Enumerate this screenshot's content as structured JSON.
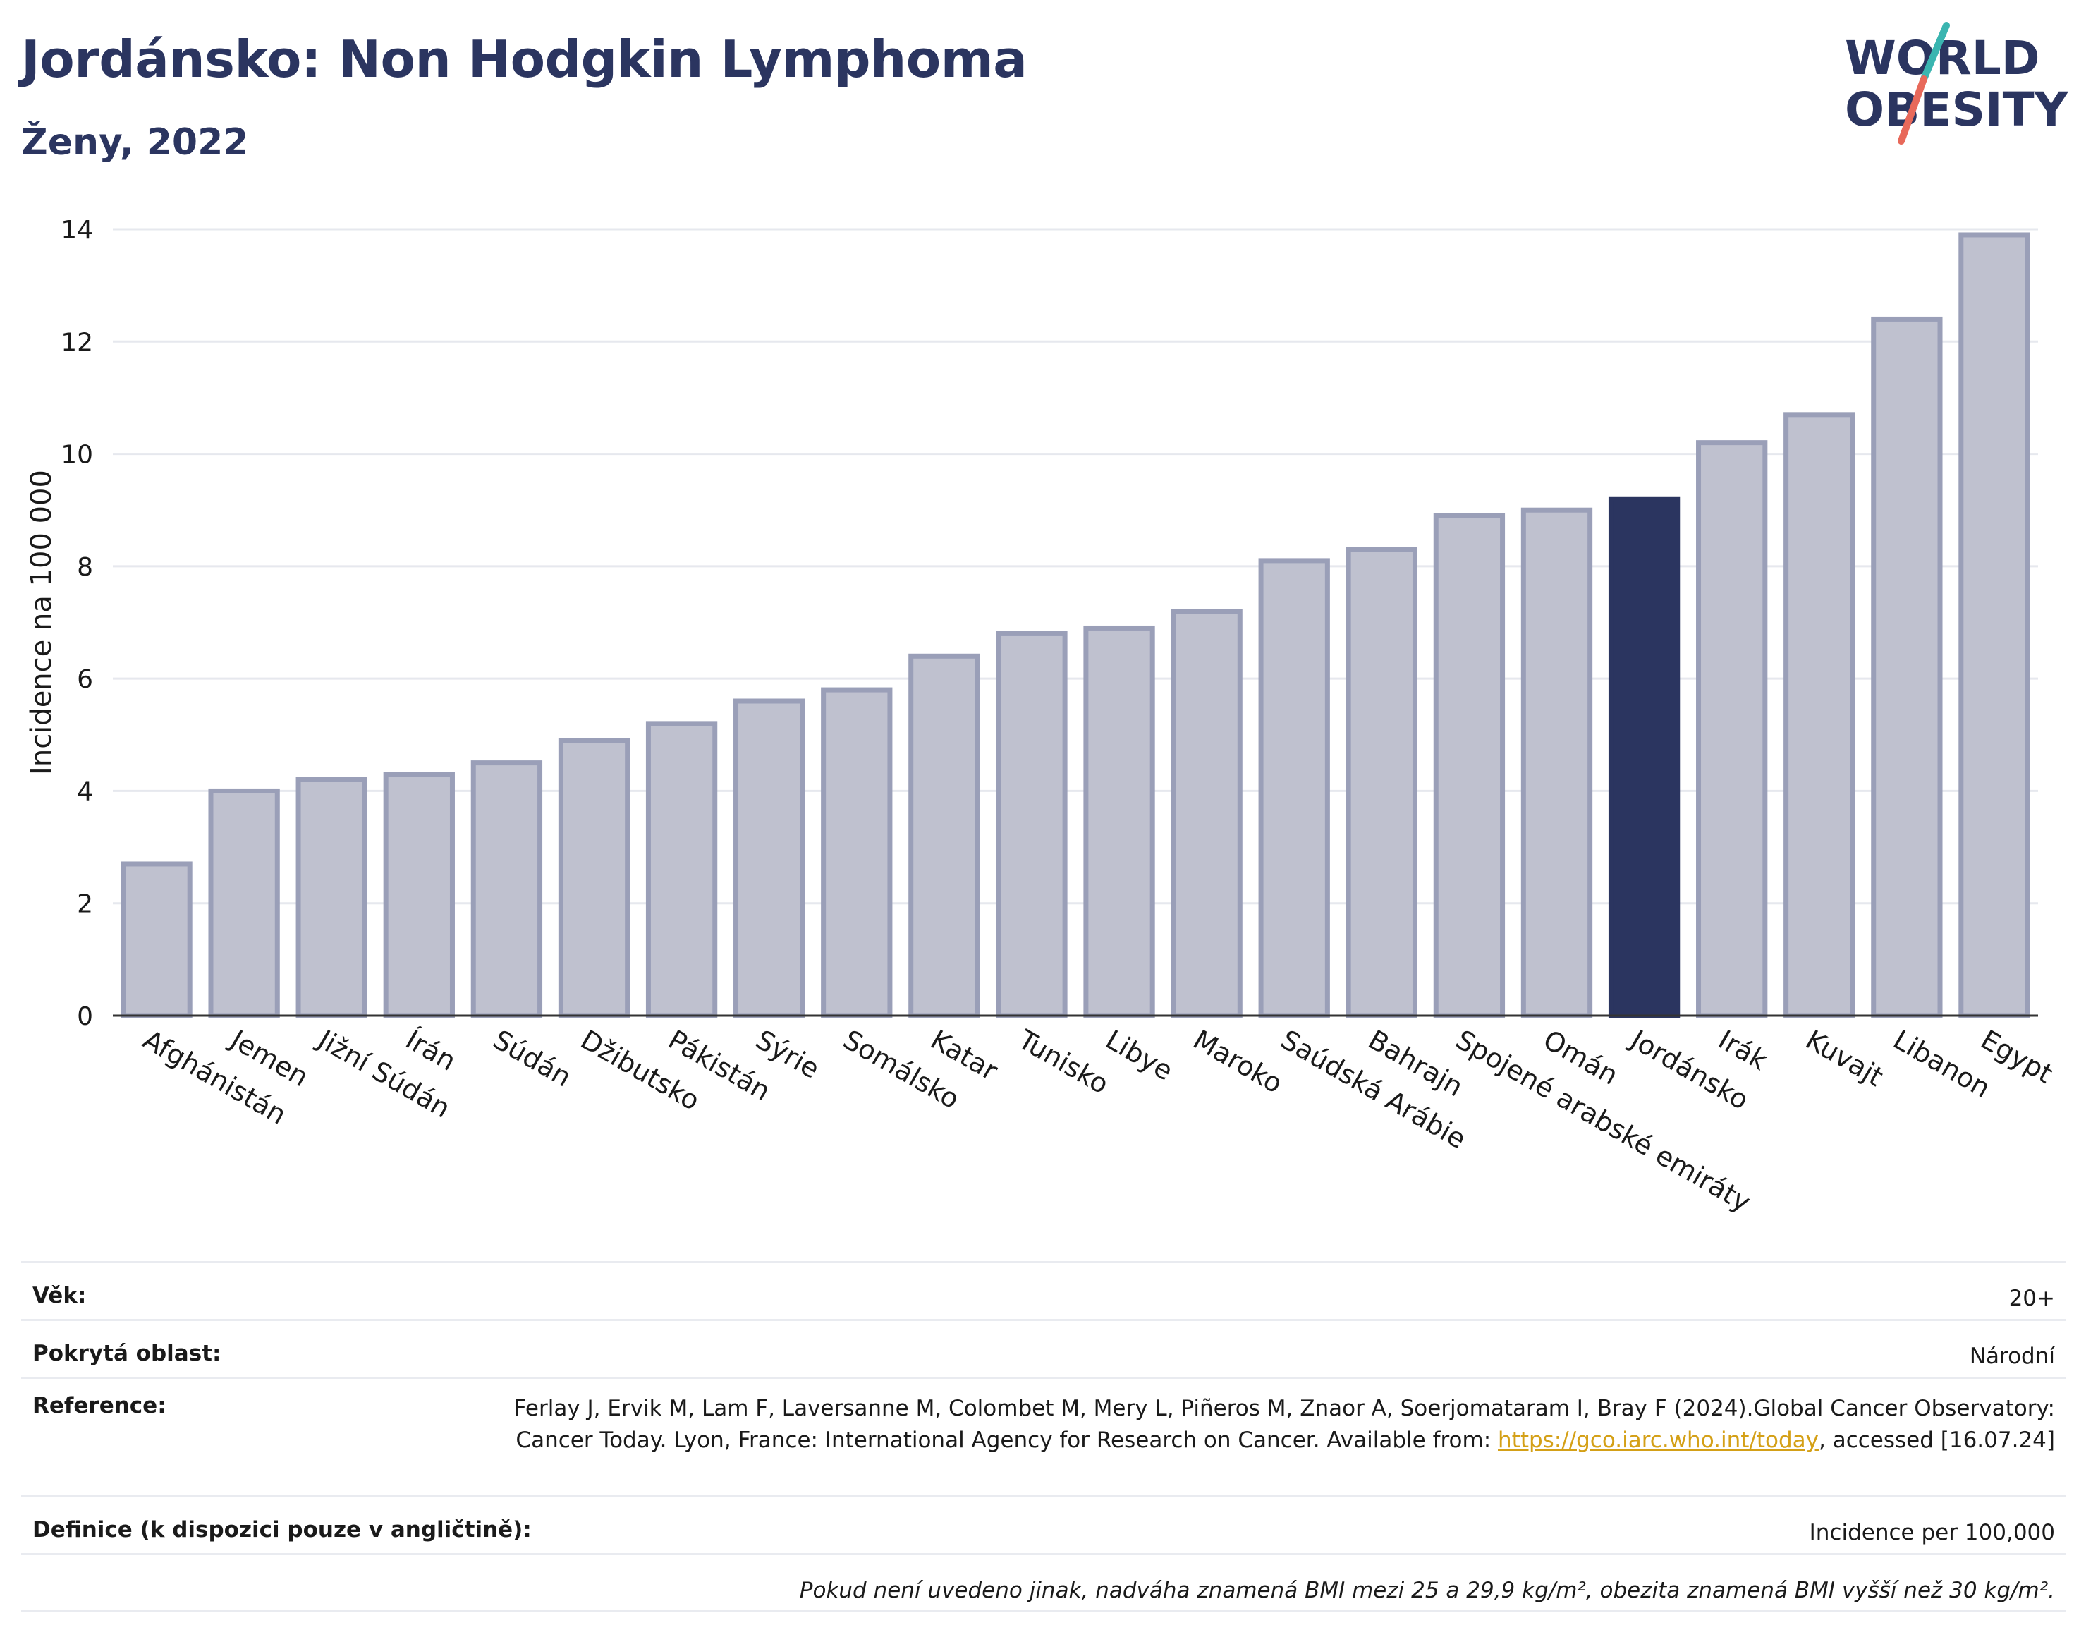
{
  "header": {
    "title": "Jordánsko: Non Hodgkin Lymphoma",
    "subtitle": "Ženy, 2022"
  },
  "logo": {
    "line1": "WORLD",
    "line2": "OBESITY"
  },
  "colors": {
    "highlight": "#2b3560",
    "bar": "#bfc1cf",
    "bar_edge": "#9a9fb8",
    "title": "#2b3560",
    "link": "#d4a017",
    "logo_teal": "#3ab5b0",
    "logo_coral": "#e8695a"
  },
  "chart_data": {
    "type": "bar",
    "title": "Jordánsko: Non Hodgkin Lymphoma",
    "subtitle": "Ženy, 2022",
    "xlabel": "",
    "ylabel": "Incidence na 100 000",
    "ylim": [
      0,
      14
    ],
    "yticks": [
      0,
      2,
      4,
      6,
      8,
      10,
      12,
      14
    ],
    "grid": true,
    "highlight_category": "Jordánsko",
    "categories": [
      "Afghánistán",
      "Jemen",
      "Jižní Súdán",
      "Írán",
      "Súdán",
      "Džibutsko",
      "Pákistán",
      "Sýrie",
      "Somálsko",
      "Katar",
      "Tunisko",
      "Libye",
      "Maroko",
      "Saúdská Arábie",
      "Bahrajn",
      "Spojené arabské emiráty",
      "Omán",
      "Jordánsko",
      "Irák",
      "Kuvajt",
      "Libanon",
      "Egypt"
    ],
    "values": [
      2.7,
      4.0,
      4.2,
      4.3,
      4.5,
      4.9,
      5.2,
      5.6,
      5.8,
      6.4,
      6.8,
      6.9,
      7.2,
      8.1,
      8.3,
      8.9,
      9.0,
      9.2,
      10.2,
      10.7,
      12.4,
      13.9
    ]
  },
  "info": {
    "age_label": "Věk:",
    "age_value": "20+",
    "area_label": "Pokrytá oblast:",
    "area_value": "Národní",
    "ref_label": "Reference:",
    "ref_text_1": "Ferlay J, Ervik M, Lam F, Laversanne M, Colombet M, Mery L, Piñeros M, Znaor A, Soerjomataram I, Bray F (2024).Global Cancer Observatory: Cancer Today. Lyon, France: International Agency for Research on Cancer. Available from: ",
    "ref_link": "https://gco.iarc.who.int/today",
    "ref_text_2": ", accessed [16.07.24]",
    "def_label": "Definice (k dispozici pouze v angličtině):",
    "def_value": "Incidence per 100,000",
    "note": "Pokud není uvedeno jinak, nadváha znamená BMI mezi 25 a 29,9 kg/m², obezita znamená BMI vyšší než 30 kg/m²."
  }
}
